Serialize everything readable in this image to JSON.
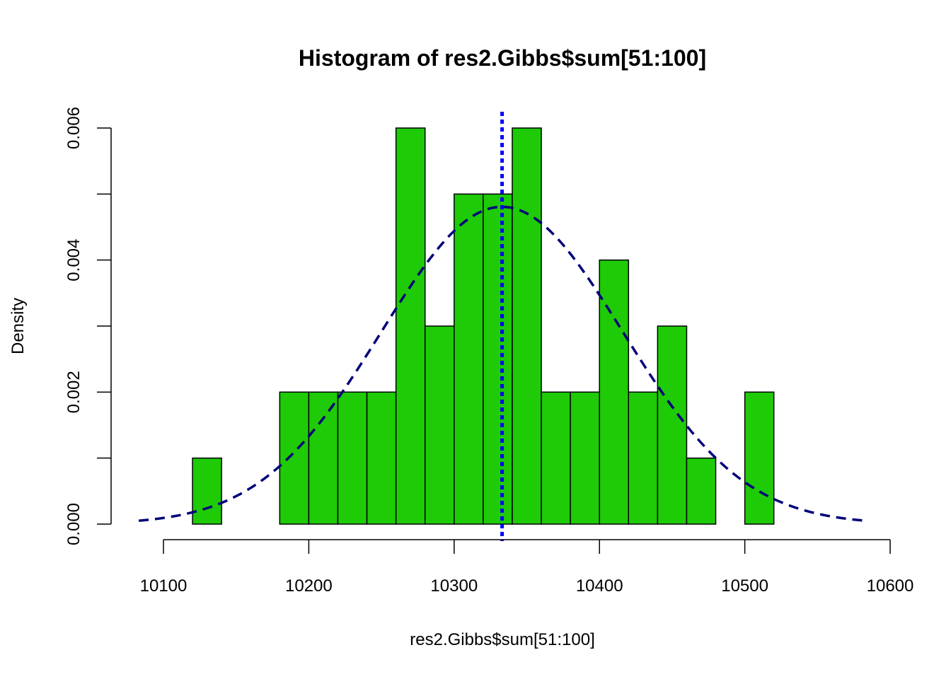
{
  "chart_data": {
    "type": "histogram",
    "title": "Histogram of res2.Gibbs$sum[51:100]",
    "xlabel": "res2.Gibbs$sum[51:100]",
    "ylabel": "Density",
    "xlim": [
      10100,
      10600
    ],
    "ylim": [
      0,
      0.006
    ],
    "x_ticks": [
      10100,
      10200,
      10300,
      10400,
      10500,
      10600
    ],
    "y_ticks": [
      0.0,
      0.002,
      0.004,
      0.006
    ],
    "x_tick_labels": [
      "10100",
      "10200",
      "10300",
      "10400",
      "10500",
      "10600"
    ],
    "y_tick_labels": [
      "0.000",
      "0.002",
      "0.004",
      "0.006"
    ],
    "grid": false,
    "bin_edges": [
      10120,
      10140,
      10160,
      10180,
      10200,
      10220,
      10240,
      10260,
      10280,
      10300,
      10320,
      10340,
      10360,
      10380,
      10400,
      10420,
      10440,
      10460,
      10480,
      10500,
      10520
    ],
    "densities": [
      0.001,
      0.0,
      0.0,
      0.002,
      0.002,
      0.002,
      0.002,
      0.006,
      0.003,
      0.005,
      0.005,
      0.006,
      0.002,
      0.002,
      0.004,
      0.002,
      0.003,
      0.001,
      0.0,
      0.002
    ],
    "bar_color": "#1ECB06",
    "normal_curve": {
      "mean": 10333,
      "sd": 83,
      "x_range": [
        10083,
        10583
      ],
      "color": "#00007A",
      "style": "dashed"
    },
    "mean_line": {
      "x": 10333,
      "color": "#0000FF",
      "style": "dotted"
    }
  }
}
